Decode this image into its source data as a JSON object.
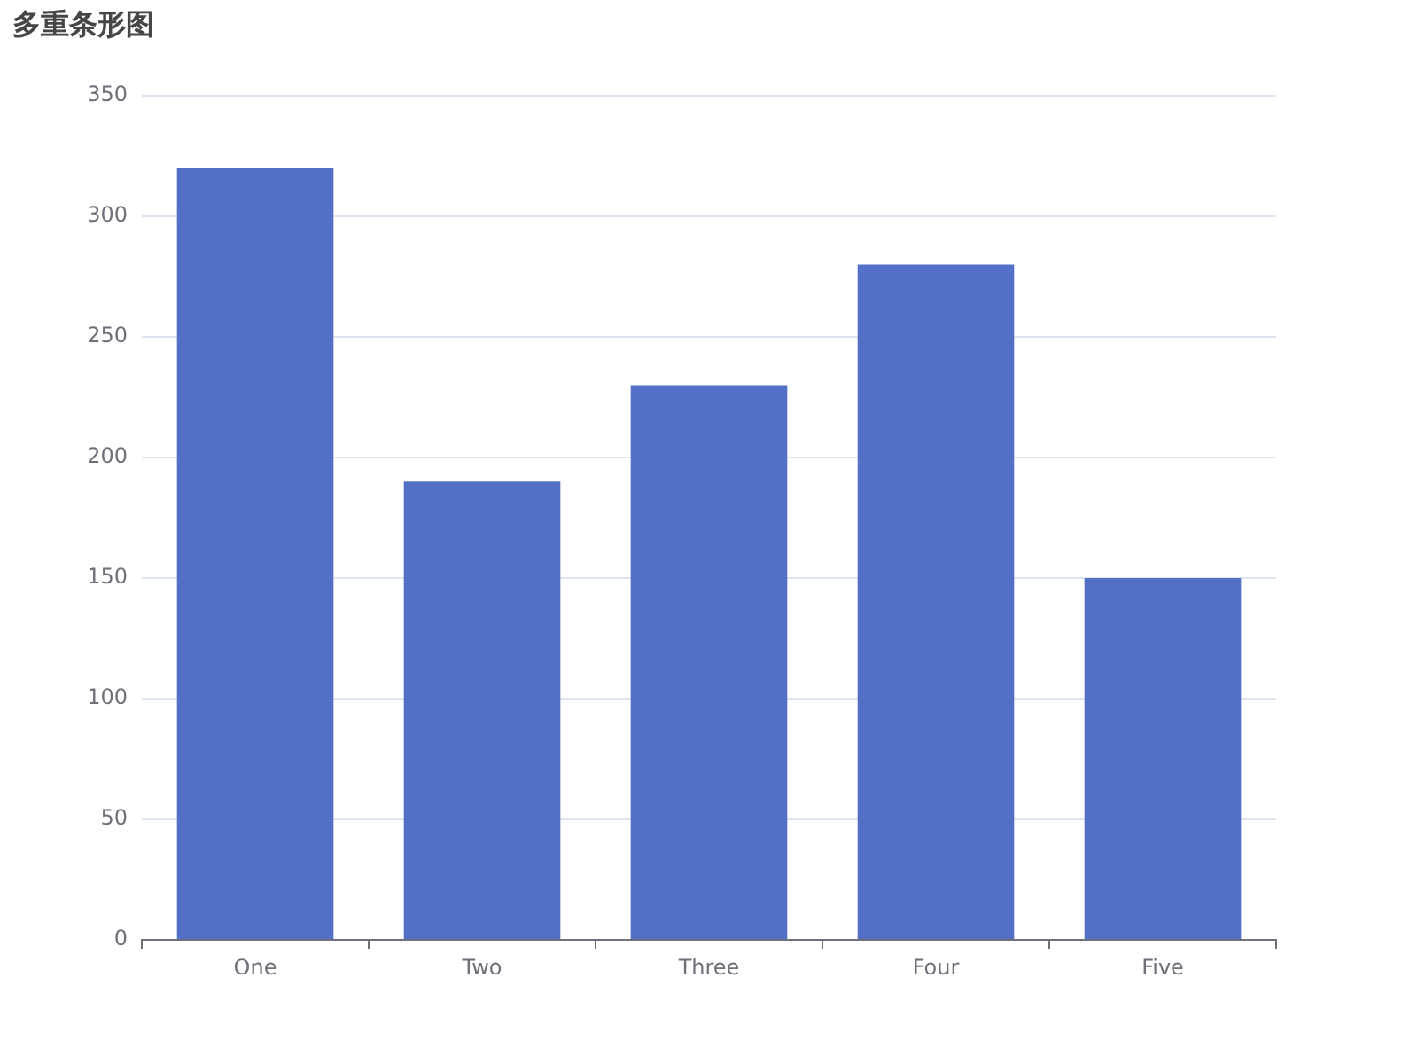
{
  "chart_data": {
    "type": "bar",
    "title": "多重条形图",
    "categories": [
      "One",
      "Two",
      "Three",
      "Four",
      "Five"
    ],
    "values": [
      320,
      190,
      230,
      280,
      150
    ],
    "color": "#5470c6",
    "ylim": [
      0,
      350
    ],
    "yticks": [
      0,
      50,
      100,
      150,
      200,
      250,
      300,
      350
    ],
    "grid": "y",
    "legend": false
  }
}
